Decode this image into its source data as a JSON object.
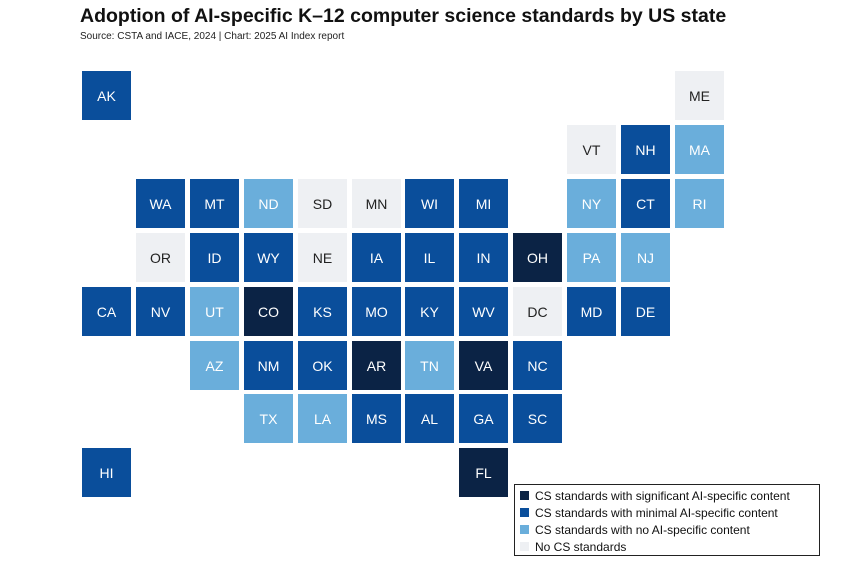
{
  "chart_data": {
    "type": "tile-map",
    "title": "Adoption of AI-specific K–12 computer science standards by US state",
    "subtitle": "Source: CSTA and IACE, 2024 | Chart: 2025 AI Index report",
    "categories": {
      "sig": {
        "label": "CS standards with significant AI-specific content",
        "color": "#0b2345"
      },
      "min": {
        "label": "CS standards with minimal AI-specific content",
        "color": "#0a4e9b"
      },
      "none": {
        "label": "CS standards with no AI-specific content",
        "color": "#6aaedb"
      },
      "nocs": {
        "label": "No CS standards",
        "color": "#eef0f3"
      }
    },
    "legend_order": [
      "sig",
      "min",
      "none",
      "nocs"
    ],
    "legend_position": "bottom-right",
    "states": [
      {
        "abbr": "AK",
        "category": "min",
        "col": 0,
        "row": 0
      },
      {
        "abbr": "ME",
        "category": "nocs",
        "col": 11,
        "row": 0
      },
      {
        "abbr": "VT",
        "category": "nocs",
        "col": 9,
        "row": 1
      },
      {
        "abbr": "NH",
        "category": "min",
        "col": 10,
        "row": 1
      },
      {
        "abbr": "MA",
        "category": "none",
        "col": 11,
        "row": 1
      },
      {
        "abbr": "WA",
        "category": "min",
        "col": 1,
        "row": 2
      },
      {
        "abbr": "MT",
        "category": "min",
        "col": 2,
        "row": 2
      },
      {
        "abbr": "ND",
        "category": "none",
        "col": 3,
        "row": 2
      },
      {
        "abbr": "SD",
        "category": "nocs",
        "col": 4,
        "row": 2
      },
      {
        "abbr": "MN",
        "category": "nocs",
        "col": 5,
        "row": 2
      },
      {
        "abbr": "WI",
        "category": "min",
        "col": 6,
        "row": 2
      },
      {
        "abbr": "MI",
        "category": "min",
        "col": 7,
        "row": 2
      },
      {
        "abbr": "NY",
        "category": "none",
        "col": 9,
        "row": 2
      },
      {
        "abbr": "CT",
        "category": "min",
        "col": 10,
        "row": 2
      },
      {
        "abbr": "RI",
        "category": "none",
        "col": 11,
        "row": 2
      },
      {
        "abbr": "OR",
        "category": "nocs",
        "col": 1,
        "row": 3
      },
      {
        "abbr": "ID",
        "category": "min",
        "col": 2,
        "row": 3
      },
      {
        "abbr": "WY",
        "category": "min",
        "col": 3,
        "row": 3
      },
      {
        "abbr": "NE",
        "category": "nocs",
        "col": 4,
        "row": 3
      },
      {
        "abbr": "IA",
        "category": "min",
        "col": 5,
        "row": 3
      },
      {
        "abbr": "IL",
        "category": "min",
        "col": 6,
        "row": 3
      },
      {
        "abbr": "IN",
        "category": "min",
        "col": 7,
        "row": 3
      },
      {
        "abbr": "OH",
        "category": "sig",
        "col": 8,
        "row": 3
      },
      {
        "abbr": "PA",
        "category": "none",
        "col": 9,
        "row": 3
      },
      {
        "abbr": "NJ",
        "category": "none",
        "col": 10,
        "row": 3
      },
      {
        "abbr": "CA",
        "category": "min",
        "col": 0,
        "row": 4
      },
      {
        "abbr": "NV",
        "category": "min",
        "col": 1,
        "row": 4
      },
      {
        "abbr": "UT",
        "category": "none",
        "col": 2,
        "row": 4
      },
      {
        "abbr": "CO",
        "category": "sig",
        "col": 3,
        "row": 4
      },
      {
        "abbr": "KS",
        "category": "min",
        "col": 4,
        "row": 4
      },
      {
        "abbr": "MO",
        "category": "min",
        "col": 5,
        "row": 4
      },
      {
        "abbr": "KY",
        "category": "min",
        "col": 6,
        "row": 4
      },
      {
        "abbr": "WV",
        "category": "min",
        "col": 7,
        "row": 4
      },
      {
        "abbr": "DC",
        "category": "nocs",
        "col": 8,
        "row": 4
      },
      {
        "abbr": "MD",
        "category": "min",
        "col": 9,
        "row": 4
      },
      {
        "abbr": "DE",
        "category": "min",
        "col": 10,
        "row": 4
      },
      {
        "abbr": "AZ",
        "category": "none",
        "col": 2,
        "row": 5
      },
      {
        "abbr": "NM",
        "category": "min",
        "col": 3,
        "row": 5
      },
      {
        "abbr": "OK",
        "category": "min",
        "col": 4,
        "row": 5
      },
      {
        "abbr": "AR",
        "category": "sig",
        "col": 5,
        "row": 5
      },
      {
        "abbr": "TN",
        "category": "none",
        "col": 6,
        "row": 5
      },
      {
        "abbr": "VA",
        "category": "sig",
        "col": 7,
        "row": 5
      },
      {
        "abbr": "NC",
        "category": "min",
        "col": 8,
        "row": 5
      },
      {
        "abbr": "TX",
        "category": "none",
        "col": 3,
        "row": 6
      },
      {
        "abbr": "LA",
        "category": "none",
        "col": 4,
        "row": 6
      },
      {
        "abbr": "MS",
        "category": "min",
        "col": 5,
        "row": 6
      },
      {
        "abbr": "AL",
        "category": "min",
        "col": 6,
        "row": 6
      },
      {
        "abbr": "GA",
        "category": "min",
        "col": 7,
        "row": 6
      },
      {
        "abbr": "SC",
        "category": "min",
        "col": 8,
        "row": 6
      },
      {
        "abbr": "HI",
        "category": "min",
        "col": 0,
        "row": 7
      },
      {
        "abbr": "FL",
        "category": "sig",
        "col": 7,
        "row": 7
      }
    ]
  }
}
